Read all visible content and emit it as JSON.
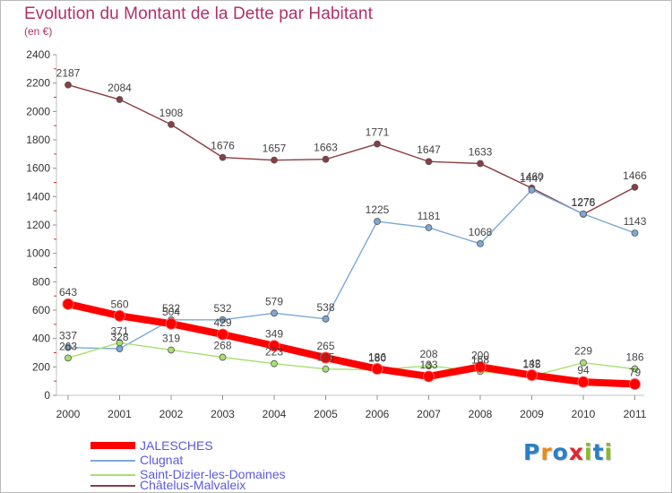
{
  "header": {
    "title": "Evolution du Montant de la Dette par Habitant",
    "unit": "(en €)"
  },
  "logo": {
    "text": "Proxiti",
    "letters": [
      "P",
      "r",
      "o",
      "x",
      "i",
      "t",
      "i"
    ],
    "colors": [
      "#2a7fc6",
      "#e98a1c",
      "#2a7fc6",
      "#e0262e",
      "#8ab92d",
      "#2a7fc6",
      "#8ab92d"
    ]
  },
  "chart_data": {
    "type": "line",
    "title": "Evolution du Montant de la Dette par Habitant",
    "subtitle": "(en €)",
    "x": [
      "2000",
      "2001",
      "2002",
      "2003",
      "2004",
      "2005",
      "2006",
      "2007",
      "2008",
      "2009",
      "2010",
      "2011"
    ],
    "yticks": [
      "0",
      "200",
      "400",
      "600",
      "800",
      "1000",
      "1200",
      "1400",
      "1600",
      "1800",
      "2000",
      "2200",
      "2400"
    ],
    "ylim": [
      0,
      2400
    ],
    "grid": false,
    "legend_position": "bottom-left",
    "series": [
      {
        "name": "JALESCHES",
        "color": "#ff0000",
        "values": [
          643,
          560,
          504,
          429,
          349,
          265,
          186,
          133,
          200,
          142,
          94,
          79
        ],
        "labels": [
          "643",
          "560",
          "504",
          "429",
          "349",
          "265",
          "186",
          "133",
          "200",
          "142",
          "94",
          "79"
        ]
      },
      {
        "name": "Clugnat",
        "color": "#7aa9d8",
        "values": [
          337,
          328,
          532,
          532,
          579,
          538,
          1225,
          1181,
          1068,
          1447,
          1278,
          1143
        ],
        "labels": [
          "337",
          "328",
          "532",
          "532",
          "579",
          "538",
          "1225",
          "1181",
          "1068",
          "1447",
          "1278",
          "1143"
        ]
      },
      {
        "name": "Saint-Dizier-les-Domaines",
        "color": "#a6e070",
        "values": [
          263,
          371,
          319,
          268,
          223,
          185,
          180,
          208,
          168,
          135,
          229,
          186
        ],
        "labels": [
          "263",
          "371",
          "319",
          "268",
          "223",
          "185",
          "180",
          "208",
          "168",
          "135",
          "229",
          "186"
        ]
      },
      {
        "name": "Châtelus-Malvaleix",
        "color": "#8a3d42",
        "values": [
          2187,
          2084,
          1908,
          1676,
          1657,
          1663,
          1771,
          1647,
          1633,
          1460,
          1276,
          1466
        ],
        "labels": [
          "2187",
          "2084",
          "1908",
          "1676",
          "1657",
          "1663",
          "1771",
          "1647",
          "1633",
          "1460",
          "1276",
          "1466"
        ]
      }
    ]
  }
}
